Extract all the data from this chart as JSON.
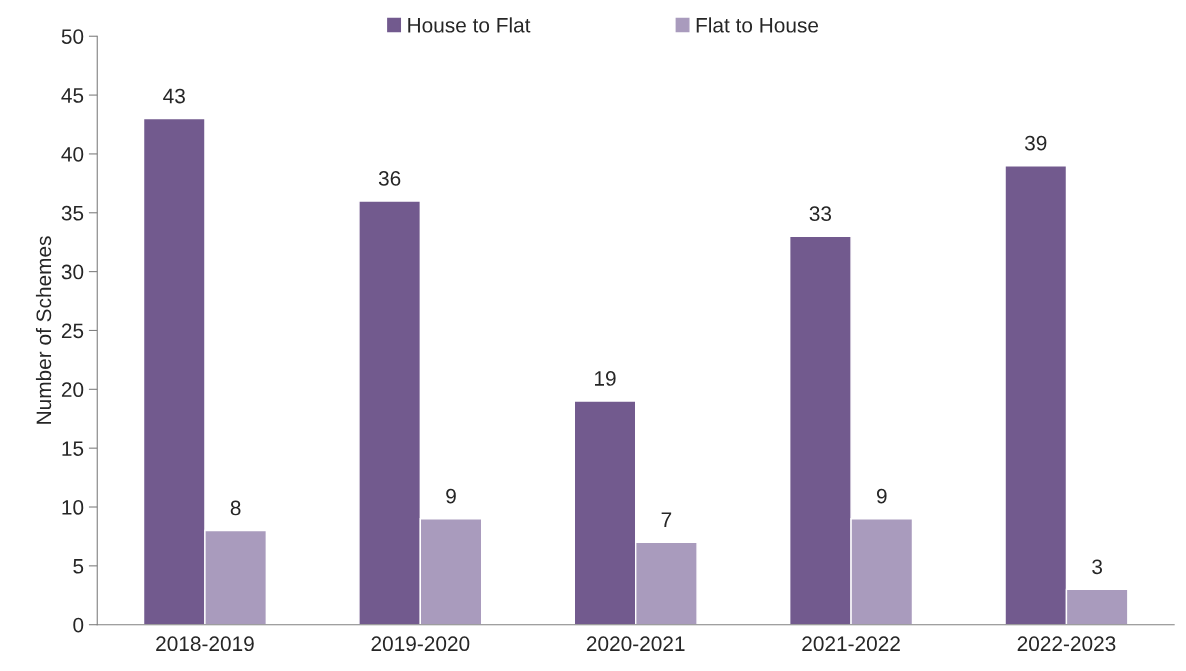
{
  "chart_data": {
    "type": "bar",
    "ylabel": "Number of Schemes",
    "categories": [
      "2018-2019",
      "2019-2020",
      "2020-2021",
      "2021-2022",
      "2022-2023"
    ],
    "series": [
      {
        "name": "House to Flat",
        "color": "#725a8e",
        "values": [
          43,
          36,
          19,
          33,
          39
        ]
      },
      {
        "name": "Flat to House",
        "color": "#a99bbd",
        "values": [
          8,
          9,
          7,
          9,
          3
        ]
      }
    ],
    "ylim": [
      0,
      50
    ],
    "yticks": [
      0,
      5,
      10,
      15,
      20,
      25,
      30,
      35,
      40,
      45,
      50
    ],
    "data_labels": true,
    "legend": "top",
    "grid": false
  }
}
